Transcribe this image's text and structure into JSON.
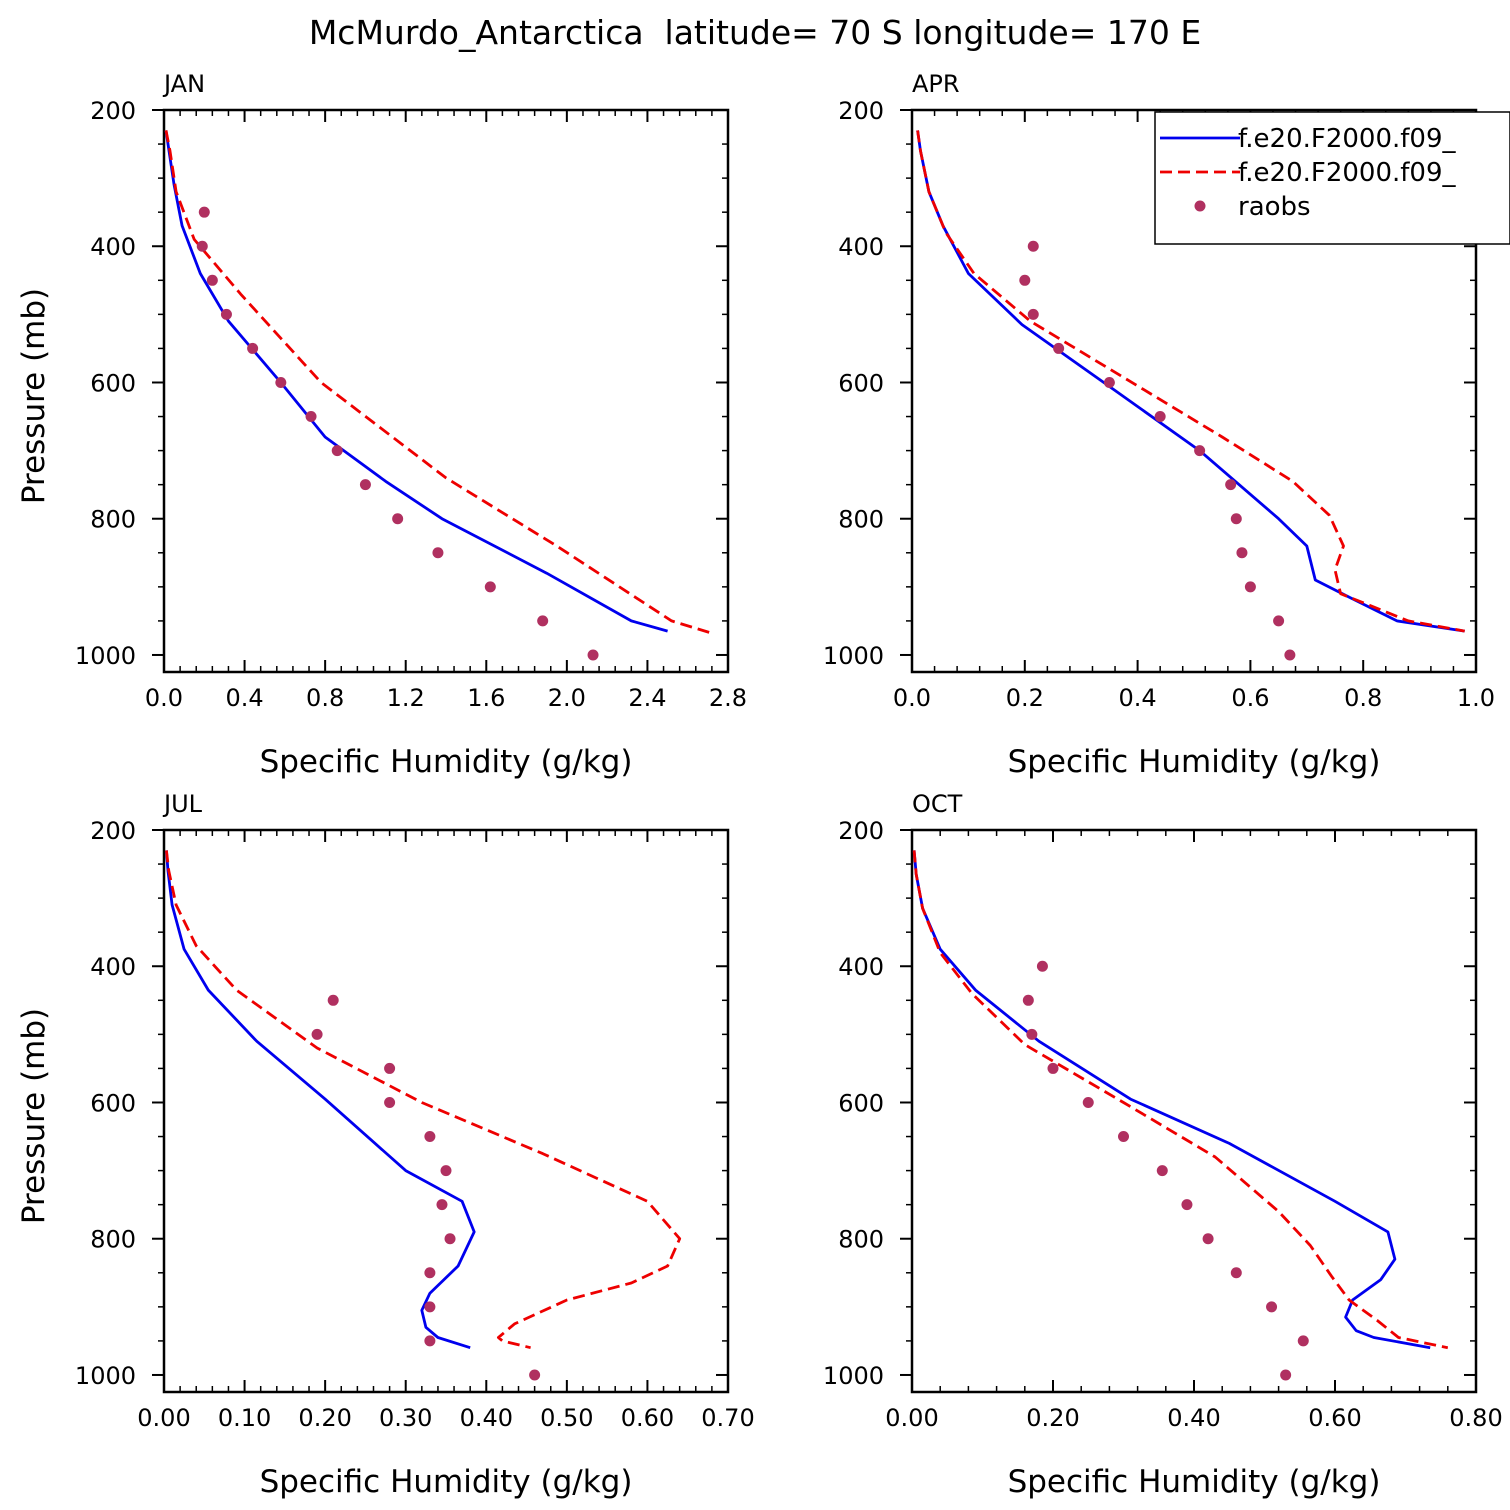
{
  "figure_title": "McMurdo_Antarctica  latitude= 70 S longitude= 170 E",
  "colors": {
    "model1": "#0000ee",
    "model2": "#ee0000",
    "obs": "#b03060"
  },
  "legend": {
    "entries": [
      {
        "label": "f.e20.F2000.f09_",
        "style": "solid",
        "color": "#0000ee"
      },
      {
        "label": "f.e20.F2000.f09_",
        "style": "dashed",
        "color": "#ee0000"
      },
      {
        "label": "raobs",
        "style": "marker",
        "color": "#b03060"
      }
    ]
  },
  "chart_data": [
    {
      "type": "line",
      "title": "JAN",
      "xlabel": "Specific Humidity (g/kg)",
      "ylabel": "Pressure (mb)",
      "xlim": [
        0.0,
        2.8
      ],
      "ylim": [
        200,
        1025
      ],
      "y_inverted": true,
      "xticks": [
        0.0,
        0.4,
        0.8,
        1.2,
        1.6,
        2.0,
        2.4,
        2.8
      ],
      "xtick_labels": [
        "0.0",
        "0.4",
        "0.8",
        "1.2",
        "1.6",
        "2.0",
        "2.4",
        "2.8"
      ],
      "yticks": [
        200,
        400,
        600,
        800,
        1000
      ],
      "ytick_labels": [
        "200",
        "400",
        "600",
        "800",
        "1000"
      ],
      "series": [
        {
          "style": "solid",
          "color": "#0000ee",
          "x": [
            0.01,
            0.02,
            0.05,
            0.09,
            0.18,
            0.32,
            0.58,
            0.8,
            1.1,
            1.38,
            1.9,
            2.32,
            2.5
          ],
          "y": [
            230,
            250,
            310,
            370,
            440,
            510,
            600,
            680,
            745,
            800,
            880,
            950,
            965
          ]
        },
        {
          "style": "dashed",
          "color": "#ee0000",
          "x": [
            0.01,
            0.03,
            0.06,
            0.15,
            0.38,
            0.78,
            1.4,
            1.95,
            2.52,
            2.72
          ],
          "y": [
            230,
            260,
            320,
            390,
            470,
            600,
            740,
            840,
            950,
            968
          ]
        },
        {
          "style": "marker",
          "color": "#b03060",
          "x": [
            0.2,
            0.19,
            0.24,
            0.31,
            0.44,
            0.58,
            0.73,
            0.86,
            1.0,
            1.16,
            1.36,
            1.62,
            1.88,
            2.13
          ],
          "y": [
            350,
            400,
            450,
            500,
            550,
            600,
            650,
            700,
            750,
            800,
            850,
            900,
            950,
            1000
          ]
        }
      ]
    },
    {
      "type": "line",
      "title": "APR",
      "xlabel": "Specific Humidity (g/kg)",
      "ylabel": "",
      "xlim": [
        0.0,
        1.0
      ],
      "ylim": [
        200,
        1025
      ],
      "y_inverted": true,
      "xticks": [
        0.0,
        0.2,
        0.4,
        0.6,
        0.8,
        1.0
      ],
      "xtick_labels": [
        "0.0",
        "0.2",
        "0.4",
        "0.6",
        "0.8",
        "1.0"
      ],
      "yticks": [
        200,
        400,
        600,
        800,
        1000
      ],
      "ytick_labels": [
        "200",
        "400",
        "600",
        "800",
        "1000"
      ],
      "series": [
        {
          "style": "solid",
          "color": "#0000ee",
          "x": [
            0.01,
            0.015,
            0.03,
            0.055,
            0.1,
            0.195,
            0.34,
            0.51,
            0.65,
            0.7,
            0.715,
            0.775,
            0.86,
            0.98
          ],
          "y": [
            230,
            260,
            320,
            370,
            440,
            515,
            600,
            700,
            800,
            840,
            890,
            915,
            950,
            965
          ]
        },
        {
          "style": "dashed",
          "color": "#ee0000",
          "x": [
            0.01,
            0.015,
            0.03,
            0.06,
            0.11,
            0.21,
            0.37,
            0.55,
            0.675,
            0.74,
            0.765,
            0.75,
            0.76,
            0.88,
            0.98
          ],
          "y": [
            230,
            260,
            320,
            380,
            440,
            510,
            590,
            680,
            745,
            795,
            840,
            875,
            910,
            950,
            965
          ]
        },
        {
          "style": "marker",
          "color": "#b03060",
          "x": [
            0.215,
            0.2,
            0.215,
            0.26,
            0.35,
            0.44,
            0.51,
            0.565,
            0.575,
            0.585,
            0.6,
            0.65,
            0.67
          ],
          "y": [
            400,
            450,
            500,
            550,
            600,
            650,
            700,
            750,
            800,
            850,
            900,
            950,
            1000
          ]
        }
      ]
    },
    {
      "type": "line",
      "title": "JUL",
      "xlabel": "Specific Humidity (g/kg)",
      "ylabel": "Pressure (mb)",
      "xlim": [
        0.0,
        0.7
      ],
      "ylim": [
        200,
        1025
      ],
      "y_inverted": true,
      "xticks": [
        0.0,
        0.1,
        0.2,
        0.3,
        0.4,
        0.5,
        0.6,
        0.7
      ],
      "xtick_labels": [
        "0.00",
        "0.10",
        "0.20",
        "0.30",
        "0.40",
        "0.50",
        "0.60",
        "0.70"
      ],
      "yticks": [
        200,
        400,
        600,
        800,
        1000
      ],
      "ytick_labels": [
        "200",
        "400",
        "600",
        "800",
        "1000"
      ],
      "series": [
        {
          "style": "solid",
          "color": "#0000ee",
          "x": [
            0.003,
            0.005,
            0.01,
            0.025,
            0.055,
            0.115,
            0.2,
            0.3,
            0.37,
            0.385,
            0.365,
            0.33,
            0.32,
            0.325,
            0.34,
            0.38
          ],
          "y": [
            230,
            260,
            310,
            375,
            435,
            510,
            595,
            700,
            745,
            790,
            840,
            880,
            905,
            930,
            945,
            960
          ]
        },
        {
          "style": "dashed",
          "color": "#ee0000",
          "x": [
            0.003,
            0.006,
            0.015,
            0.04,
            0.09,
            0.19,
            0.32,
            0.47,
            0.6,
            0.64,
            0.625,
            0.58,
            0.5,
            0.435,
            0.415,
            0.42,
            0.455
          ],
          "y": [
            230,
            260,
            310,
            370,
            435,
            520,
            600,
            675,
            745,
            800,
            840,
            865,
            890,
            925,
            945,
            950,
            960
          ]
        },
        {
          "style": "marker",
          "color": "#b03060",
          "x": [
            0.21,
            0.19,
            0.28,
            0.28,
            0.33,
            0.35,
            0.345,
            0.355,
            0.33,
            0.33,
            0.33,
            0.46
          ],
          "y": [
            450,
            500,
            550,
            600,
            650,
            700,
            750,
            800,
            850,
            900,
            950,
            1000
          ]
        }
      ]
    },
    {
      "type": "line",
      "title": "OCT",
      "xlabel": "Specific Humidity (g/kg)",
      "ylabel": "",
      "xlim": [
        0.0,
        0.8
      ],
      "ylim": [
        200,
        1025
      ],
      "y_inverted": true,
      "xticks": [
        0.0,
        0.2,
        0.4,
        0.6,
        0.8
      ],
      "xtick_labels": [
        "0.00",
        "0.20",
        "0.40",
        "0.60",
        "0.80"
      ],
      "yticks": [
        200,
        400,
        600,
        800,
        1000
      ],
      "ytick_labels": [
        "200",
        "400",
        "600",
        "800",
        "1000"
      ],
      "series": [
        {
          "style": "solid",
          "color": "#0000ee",
          "x": [
            0.003,
            0.006,
            0.015,
            0.04,
            0.09,
            0.18,
            0.31,
            0.45,
            0.6,
            0.675,
            0.685,
            0.665,
            0.625,
            0.615,
            0.63,
            0.655,
            0.735
          ],
          "y": [
            230,
            265,
            315,
            375,
            435,
            510,
            595,
            660,
            745,
            790,
            830,
            860,
            890,
            915,
            935,
            945,
            960
          ]
        },
        {
          "style": "dashed",
          "color": "#ee0000",
          "x": [
            0.003,
            0.006,
            0.015,
            0.04,
            0.085,
            0.16,
            0.3,
            0.43,
            0.52,
            0.565,
            0.595,
            0.62,
            0.66,
            0.69,
            0.76
          ],
          "y": [
            230,
            265,
            315,
            380,
            440,
            515,
            600,
            680,
            760,
            810,
            855,
            890,
            920,
            945,
            960
          ]
        },
        {
          "style": "marker",
          "color": "#b03060",
          "x": [
            0.185,
            0.165,
            0.17,
            0.2,
            0.25,
            0.3,
            0.355,
            0.39,
            0.42,
            0.46,
            0.51,
            0.555,
            0.53
          ],
          "y": [
            400,
            450,
            500,
            550,
            600,
            650,
            700,
            750,
            800,
            850,
            900,
            950,
            1000
          ]
        }
      ]
    }
  ]
}
